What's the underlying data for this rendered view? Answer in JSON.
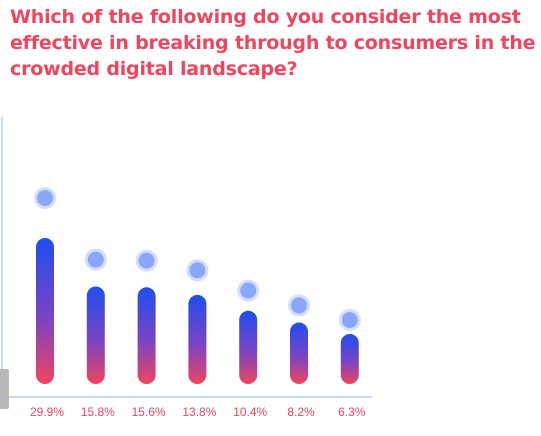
{
  "question": "Which of the following do you consider the most effective in breaking through to consumers in the crowded digital landscape?",
  "colors": {
    "title": "#f0455f",
    "label": "#e8455f",
    "bar_top": "#1f4ef0",
    "bar_mid": "#7a44c4",
    "bar_bottom": "#f0455f",
    "dot_inner": "#8aa6ff",
    "dot_outer": "#d4defc",
    "axis": "#97b0f0"
  },
  "chart_data": {
    "type": "bar",
    "title": "Which of the following do you consider the most effective in breaking through to consumers in the crowded digital landscape?",
    "xlabel": "",
    "ylabel": "",
    "grid": false,
    "legend": "none",
    "categories": [],
    "values": [
      29.9,
      15.8,
      15.6,
      13.8,
      10.4,
      8.2,
      6.3
    ],
    "labels": [
      "29.9%",
      "15.8%",
      "15.6%",
      "13.8%",
      "10.4%",
      "8.2%",
      "6.3%"
    ]
  }
}
